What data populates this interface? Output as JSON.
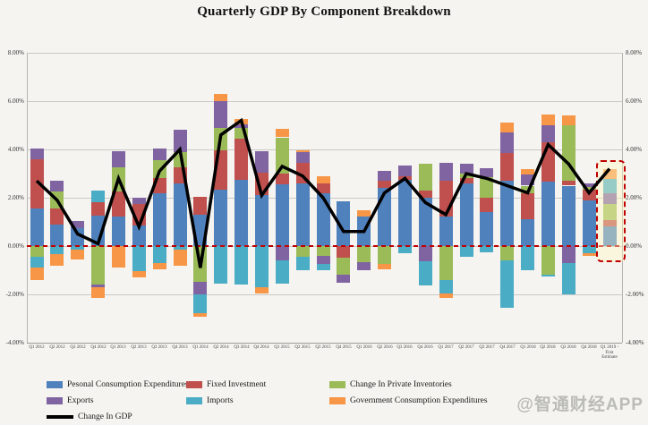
{
  "watermark": "@智通财经APP",
  "chart_data": {
    "type": "bar",
    "subtype": "stacked-bar-with-line",
    "title": "Quarterly GDP By Component Breakdown",
    "xlabel": "",
    "ylabel": "",
    "ylim": [
      -4,
      8
    ],
    "grid": true,
    "legend_position": "bottom",
    "y_ticks": [
      {
        "value": 8,
        "label": "8.00%"
      },
      {
        "value": 6,
        "label": "6.00%"
      },
      {
        "value": 4,
        "label": "4.00%"
      },
      {
        "value": 2,
        "label": "2.00%"
      },
      {
        "value": 0,
        "label": "0.00%"
      },
      {
        "value": -2,
        "label": "-2.00%"
      },
      {
        "value": -4,
        "label": "-4.00%"
      }
    ],
    "categories": [
      "Q1 2012",
      "Q2 2012",
      "Q3 2012",
      "Q4 2012",
      "Q1 2013",
      "Q2 2013",
      "Q3 2013",
      "Q4 2013",
      "Q1 2014",
      "Q2 2014",
      "Q3 2014",
      "Q4 2014",
      "Q1 2015",
      "Q2 2015",
      "Q3 2015",
      "Q4 2015",
      "Q1 2016",
      "Q2 2016",
      "Q3 2016",
      "Q4 2016",
      "Q1 2017",
      "Q2 2017",
      "Q3 2017",
      "Q4 2017",
      "Q1 2018",
      "Q2 2018",
      "Q3 2018",
      "Q4 2018",
      "Q1 2019 - First Estimate"
    ],
    "last_category_lines": [
      "Q1 2019 -",
      "First",
      "Estimate"
    ],
    "series": [
      {
        "name": "Pesonal Consumption Expenditures",
        "color": "#4F81BD",
        "values": [
          1.55,
          0.9,
          0.75,
          1.25,
          1.22,
          0.87,
          2.2,
          2.6,
          1.3,
          2.33,
          2.74,
          2.1,
          2.55,
          2.6,
          2.2,
          1.85,
          1.21,
          2.41,
          2.74,
          2.0,
          1.23,
          2.6,
          1.4,
          2.7,
          1.1,
          2.65,
          2.5,
          1.9,
          0.82
        ]
      },
      {
        "name": "Fixed Investment",
        "color": "#C0504D",
        "values": [
          2.05,
          0.65,
          0.0,
          0.55,
          1.04,
          0.87,
          0.6,
          0.65,
          0.74,
          1.63,
          1.7,
          0.92,
          0.45,
          0.85,
          0.41,
          -0.49,
          0.0,
          0.31,
          0.15,
          0.3,
          1.48,
          0.2,
          0.6,
          1.15,
          1.1,
          1.65,
          0.19,
          0.45,
          0.27
        ]
      },
      {
        "name": "Change In Private Inventories",
        "color": "#9BBB59",
        "values": [
          -0.45,
          0.7,
          0.0,
          -1.6,
          1.0,
          0.0,
          0.75,
          0.65,
          -1.48,
          0.93,
          0.45,
          0.0,
          1.5,
          -0.45,
          -0.4,
          -0.7,
          -0.68,
          -0.74,
          0.0,
          1.1,
          -1.42,
          0.2,
          0.85,
          -0.6,
          0.3,
          -1.2,
          2.31,
          0.1,
          0.65
        ]
      },
      {
        "name": "Exports",
        "color": "#8064A2",
        "values": [
          0.45,
          0.45,
          0.3,
          -0.1,
          0.67,
          0.26,
          0.5,
          0.9,
          -0.52,
          1.11,
          0.15,
          0.9,
          -0.6,
          0.45,
          -0.34,
          -0.33,
          -0.32,
          0.39,
          0.45,
          -0.62,
          0.74,
          0.4,
          0.37,
          0.85,
          0.45,
          0.7,
          -0.7,
          0.15,
          0.45
        ]
      },
      {
        "name": "Imports",
        "color": "#4BACC6",
        "values": [
          -0.45,
          -0.35,
          -0.15,
          0.5,
          0.0,
          -1.02,
          -0.7,
          -0.15,
          -0.78,
          -1.56,
          -1.6,
          -1.7,
          -0.95,
          -0.55,
          -0.26,
          0.0,
          0.0,
          0.0,
          -0.31,
          -1.01,
          -0.56,
          -0.43,
          -0.25,
          -1.95,
          -1.0,
          -0.05,
          -1.3,
          -0.3,
          0.58
        ]
      },
      {
        "name": "Government Consumption Expenditures",
        "color": "#F79646",
        "values": [
          -0.5,
          -0.45,
          -0.4,
          -0.45,
          -0.9,
          -0.26,
          -0.25,
          -0.65,
          -0.15,
          0.3,
          0.22,
          -0.26,
          0.35,
          0.05,
          0.29,
          0.0,
          0.27,
          -0.22,
          0.0,
          0.0,
          -0.15,
          0.0,
          0.0,
          0.4,
          0.25,
          0.45,
          0.41,
          -0.1,
          0.41
        ]
      }
    ],
    "line_series": {
      "name": "Change In GDP",
      "color": "#000000",
      "values": [
        2.7,
        1.9,
        0.5,
        0.1,
        2.8,
        0.8,
        3.1,
        4.0,
        -0.9,
        4.6,
        5.2,
        2.1,
        3.3,
        2.9,
        2.0,
        0.6,
        0.6,
        2.2,
        2.8,
        1.8,
        1.3,
        3.0,
        2.8,
        2.5,
        2.2,
        4.2,
        3.4,
        2.2,
        3.2
      ]
    },
    "zero_line_color": "#C00000",
    "highlight": {
      "target": "Q1 2019 - First Estimate",
      "border_color": "#C00000",
      "fill_color": "#FFF7C3"
    }
  }
}
